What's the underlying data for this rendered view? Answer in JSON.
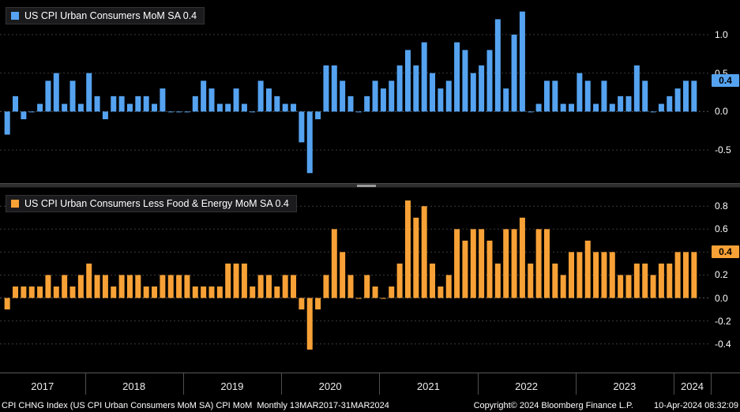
{
  "colors": {
    "headline_blue": "#55a3f0",
    "core_orange": "#f7a136",
    "background": "#000000",
    "grid": "#3a3a3a",
    "zero_line": "#5a5a5a",
    "axis_text": "#ffffff"
  },
  "x_axis": {
    "years": [
      "2017",
      "2018",
      "2019",
      "2020",
      "2021",
      "2022",
      "2023",
      "2024"
    ],
    "start_year": 2017,
    "start_month": 3
  },
  "footer": {
    "left": "CPI CHNG Index (US CPI Urban Consumers MoM SA) CPI MoM  Monthly 13MAR2017-31MAR2024",
    "copyright": "Copyright© 2024 Bloomberg Finance L.P.",
    "timestamp": "10-Apr-2024 08:32:09"
  },
  "chart_data": [
    {
      "type": "bar",
      "title": "US CPI Urban Consumers MoM SA",
      "legend_text": "US CPI Urban Consumers MoM SA 0.4",
      "last_value": "0.4",
      "color": "#55a3f0",
      "x_start": "2017-03",
      "x_end": "2024-03",
      "frequency": "Monthly",
      "xlabel": "",
      "ylabel": "",
      "grid": true,
      "legend_position": "top-left",
      "yticks": [
        1.0,
        0.5,
        0.0,
        -0.5
      ],
      "ylim": [
        -0.93,
        1.45
      ],
      "values": [
        -0.3,
        0.2,
        -0.1,
        0.0,
        0.1,
        0.4,
        0.5,
        0.1,
        0.4,
        0.1,
        0.5,
        0.2,
        -0.1,
        0.2,
        0.2,
        0.1,
        0.2,
        0.2,
        0.1,
        0.3,
        0.0,
        0.0,
        0.0,
        0.2,
        0.4,
        0.3,
        0.1,
        0.1,
        0.3,
        0.1,
        0.0,
        0.4,
        0.3,
        0.2,
        0.1,
        0.1,
        -0.4,
        -0.8,
        -0.1,
        0.6,
        0.6,
        0.4,
        0.2,
        0.0,
        0.2,
        0.4,
        0.3,
        0.4,
        0.6,
        0.8,
        0.6,
        0.9,
        0.5,
        0.3,
        0.4,
        0.9,
        0.8,
        0.5,
        0.6,
        0.8,
        1.2,
        0.3,
        1.0,
        1.3,
        0.0,
        0.1,
        0.4,
        0.4,
        0.1,
        0.1,
        0.5,
        0.4,
        0.1,
        0.4,
        0.1,
        0.2,
        0.2,
        0.6,
        0.4,
        0.0,
        0.1,
        0.2,
        0.3,
        0.4,
        0.4
      ]
    },
    {
      "type": "bar",
      "title": "US CPI Urban Consumers Less Food & Energy MoM SA",
      "legend_text": "US CPI Urban Consumers Less Food & Energy MoM SA 0.4",
      "last_value": "0.4",
      "color": "#f7a136",
      "x_start": "2017-03",
      "x_end": "2024-03",
      "frequency": "Monthly",
      "xlabel": "",
      "ylabel": "",
      "grid": true,
      "legend_position": "top-left",
      "yticks": [
        0.8,
        0.6,
        0.4,
        0.2,
        0.0,
        -0.2,
        -0.4
      ],
      "ylim": [
        -0.65,
        0.96
      ],
      "values": [
        -0.1,
        0.1,
        0.1,
        0.1,
        0.1,
        0.2,
        0.1,
        0.2,
        0.1,
        0.2,
        0.3,
        0.2,
        0.2,
        0.1,
        0.2,
        0.2,
        0.2,
        0.1,
        0.1,
        0.2,
        0.2,
        0.2,
        0.2,
        0.1,
        0.1,
        0.1,
        0.1,
        0.3,
        0.3,
        0.3,
        0.1,
        0.2,
        0.2,
        0.1,
        0.2,
        0.2,
        -0.1,
        -0.45,
        -0.1,
        0.2,
        0.6,
        0.4,
        0.2,
        0.0,
        0.2,
        0.1,
        0.0,
        0.1,
        0.3,
        0.85,
        0.7,
        0.8,
        0.3,
        0.1,
        0.2,
        0.6,
        0.5,
        0.6,
        0.6,
        0.5,
        0.3,
        0.6,
        0.6,
        0.7,
        0.3,
        0.6,
        0.6,
        0.3,
        0.2,
        0.4,
        0.4,
        0.5,
        0.4,
        0.4,
        0.4,
        0.2,
        0.2,
        0.3,
        0.3,
        0.2,
        0.3,
        0.3,
        0.4,
        0.4,
        0.4
      ]
    }
  ]
}
